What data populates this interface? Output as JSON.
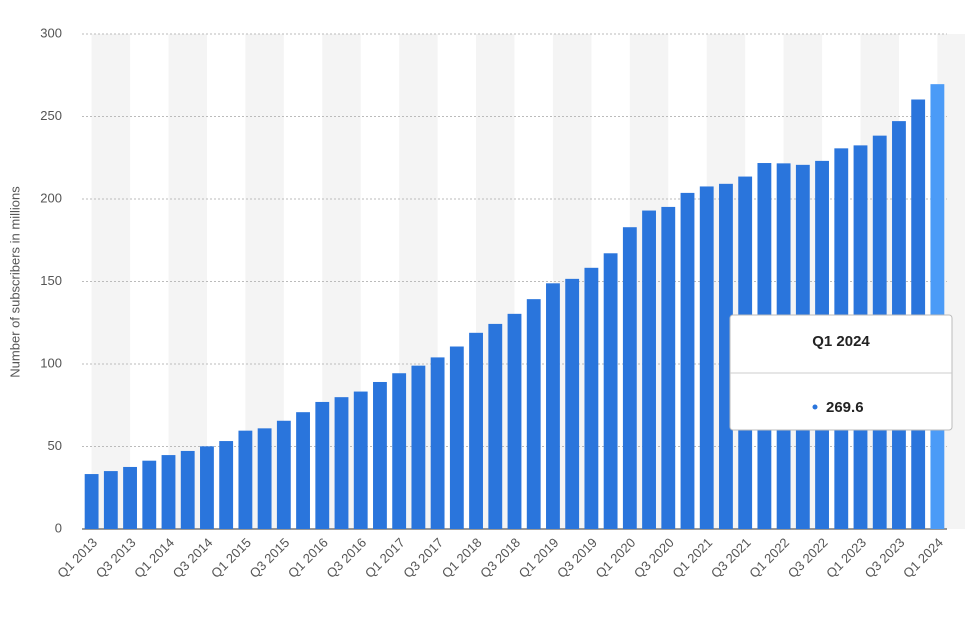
{
  "chart_data": {
    "type": "bar",
    "y_label": "Number of subscribers in millions",
    "categories": [
      "Q1 2013",
      null,
      "Q3 2013",
      null,
      "Q1 2014",
      null,
      "Q3 2014",
      null,
      "Q1 2015",
      null,
      "Q3 2015",
      null,
      "Q1 2016",
      null,
      "Q3 2016",
      null,
      "Q1 2017",
      null,
      "Q3 2017",
      null,
      "Q1 2018",
      null,
      "Q3 2018",
      null,
      "Q1 2019",
      null,
      "Q3 2019",
      null,
      "Q1 2020",
      null,
      "Q3 2020",
      null,
      "Q1 2021",
      null,
      "Q3 2021",
      null,
      "Q1 2022",
      null,
      "Q3 2022",
      null,
      "Q1 2023",
      null,
      "Q3 2023",
      null,
      "Q1 2024"
    ],
    "values": [
      33.3,
      35.1,
      37.6,
      41.4,
      44.8,
      47.3,
      50.1,
      53.3,
      59.6,
      61,
      65.6,
      70.8,
      77,
      79.9,
      83.3,
      89.1,
      94.4,
      99,
      104,
      110.6,
      118.9,
      124.3,
      130.4,
      139.3,
      148.9,
      151.6,
      158.3,
      167.1,
      182.9,
      193,
      195.2,
      203.7,
      207.6,
      209.2,
      213.6,
      221.8,
      221.6,
      220.7,
      223.1,
      230.7,
      232.5,
      238.4,
      247.2,
      260.3,
      269.6
    ],
    "color": "#2a75dc",
    "highlight_color": "#4b9bf7",
    "ylim": [
      0,
      300
    ],
    "yticks": [
      0,
      50,
      100,
      150,
      200,
      250,
      300
    ],
    "grid": true
  }
}
